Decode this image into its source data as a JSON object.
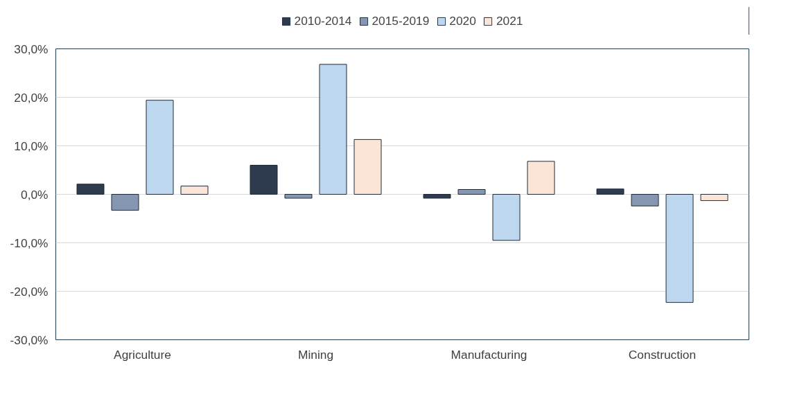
{
  "chart_data": {
    "type": "bar",
    "categories": [
      "Agriculture",
      "Mining",
      "Manufacturing",
      "Construction"
    ],
    "series": [
      {
        "name": "2010-2014",
        "color": "#2e3a4e",
        "values": [
          2.1,
          6.0,
          -0.8,
          1.1
        ]
      },
      {
        "name": "2015-2019",
        "color": "#8496b0",
        "values": [
          -3.3,
          -0.8,
          1.0,
          -2.4
        ]
      },
      {
        "name": "2020",
        "color": "#bdd7ee",
        "values": [
          19.4,
          26.8,
          -9.5,
          -22.3
        ]
      },
      {
        "name": "2021",
        "color": "#fbe5d6",
        "values": [
          1.7,
          11.3,
          6.8,
          -1.3
        ]
      }
    ],
    "ylim": [
      -30,
      30
    ],
    "yticks": [
      {
        "value": -30,
        "label": "-30,0%"
      },
      {
        "value": -20,
        "label": "-20,0%"
      },
      {
        "value": -10,
        "label": "-10,0%"
      },
      {
        "value": 0,
        "label": "0,0%"
      },
      {
        "value": 10,
        "label": "10,0%"
      },
      {
        "value": 20,
        "label": "20,0%"
      },
      {
        "value": 30,
        "label": "30,0%"
      }
    ],
    "grid": "y",
    "legend": "top"
  }
}
